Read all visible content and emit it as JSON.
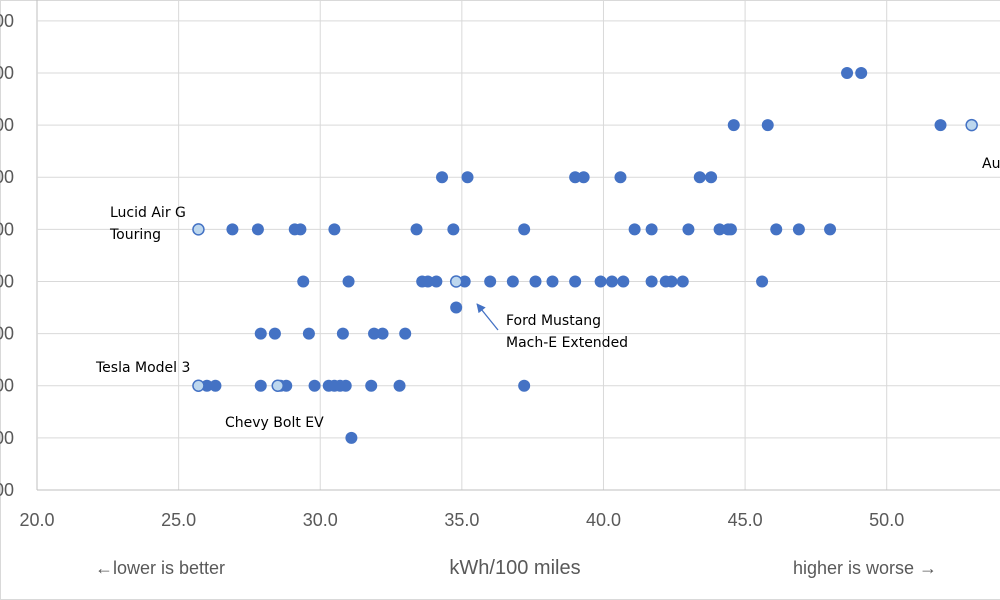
{
  "colors": {
    "point": "#4472C4",
    "highlight_fill": "#BDD7EE",
    "highlight_stroke": "#4472C4",
    "grid": "#D9D9D9",
    "axis": "#BFBFBF",
    "text": "#595959",
    "annotation": "#000000",
    "arrow": "#4472C4"
  },
  "chart_data": {
    "type": "scatter",
    "xlabel": "kWh/100 miles",
    "left_hint": "←lower is better",
    "right_hint": "higher is worse →",
    "xlim": [
      20,
      54
    ],
    "ylim": [
      0,
      9.4
    ],
    "x_ticks": [
      20,
      25,
      30,
      35,
      40,
      45,
      50
    ],
    "x_tick_labels": [
      "20.0",
      "25.0",
      "30.0",
      "35.0",
      "40.0",
      "45.0",
      "50.0"
    ],
    "y_ticks": [
      0,
      1,
      2,
      3,
      4,
      5,
      6,
      7,
      8,
      9
    ],
    "y_tick_labels": [
      "00",
      "00",
      "00",
      "00",
      "00",
      "00",
      "00",
      "00",
      "00",
      "00"
    ],
    "grid": "vertical and horizontal",
    "series": [
      {
        "points": [
          [
            31.1,
            1
          ],
          [
            26.0,
            2
          ],
          [
            26.3,
            2
          ],
          [
            27.9,
            2
          ],
          [
            28.6,
            2
          ],
          [
            28.8,
            2
          ],
          [
            29.8,
            2
          ],
          [
            30.3,
            2
          ],
          [
            30.5,
            2
          ],
          [
            30.7,
            2
          ],
          [
            30.9,
            2
          ],
          [
            31.8,
            2
          ],
          [
            32.8,
            2
          ],
          [
            37.2,
            2
          ],
          [
            27.9,
            3
          ],
          [
            28.4,
            3
          ],
          [
            29.6,
            3
          ],
          [
            30.8,
            3
          ],
          [
            31.9,
            3
          ],
          [
            32.2,
            3
          ],
          [
            33.0,
            3
          ],
          [
            34.8,
            3.5
          ],
          [
            29.4,
            4
          ],
          [
            31.0,
            4
          ],
          [
            33.6,
            4
          ],
          [
            33.8,
            4
          ],
          [
            34.1,
            4
          ],
          [
            35.1,
            4
          ],
          [
            36.0,
            4
          ],
          [
            36.8,
            4
          ],
          [
            37.6,
            4
          ],
          [
            38.2,
            4
          ],
          [
            39.0,
            4
          ],
          [
            39.9,
            4
          ],
          [
            40.3,
            4
          ],
          [
            40.7,
            4
          ],
          [
            41.7,
            4
          ],
          [
            42.2,
            4
          ],
          [
            42.4,
            4
          ],
          [
            42.8,
            4
          ],
          [
            45.6,
            4
          ],
          [
            26.9,
            5
          ],
          [
            27.8,
            5
          ],
          [
            29.1,
            5
          ],
          [
            29.3,
            5
          ],
          [
            30.5,
            5
          ],
          [
            33.4,
            5
          ],
          [
            34.7,
            5
          ],
          [
            37.2,
            5
          ],
          [
            41.1,
            5
          ],
          [
            41.7,
            5
          ],
          [
            43.0,
            5
          ],
          [
            44.1,
            5
          ],
          [
            44.4,
            5
          ],
          [
            44.5,
            5
          ],
          [
            46.1,
            5
          ],
          [
            46.9,
            5
          ],
          [
            48.0,
            5
          ],
          [
            34.3,
            6
          ],
          [
            35.2,
            6
          ],
          [
            39.0,
            6
          ],
          [
            39.3,
            6
          ],
          [
            40.6,
            6
          ],
          [
            43.4,
            6
          ],
          [
            43.8,
            6
          ],
          [
            44.6,
            7
          ],
          [
            45.8,
            7
          ],
          [
            51.9,
            7
          ],
          [
            48.6,
            8
          ],
          [
            49.1,
            8
          ]
        ]
      },
      {
        "highlighted": true,
        "points": [
          [
            25.7,
            5
          ],
          [
            25.7,
            2
          ],
          [
            28.5,
            2
          ],
          [
            34.8,
            4
          ],
          [
            53.0,
            7
          ]
        ]
      }
    ],
    "annotations": [
      {
        "lines": [
          "Lucid Air G",
          "Touring"
        ]
      },
      {
        "lines": [
          "Tesla Model 3"
        ]
      },
      {
        "lines": [
          "Chevy Bolt EV"
        ]
      },
      {
        "lines": [
          "Ford Mustang",
          "Mach-E Extended"
        ]
      },
      {
        "lines": [
          "Au"
        ]
      }
    ]
  }
}
